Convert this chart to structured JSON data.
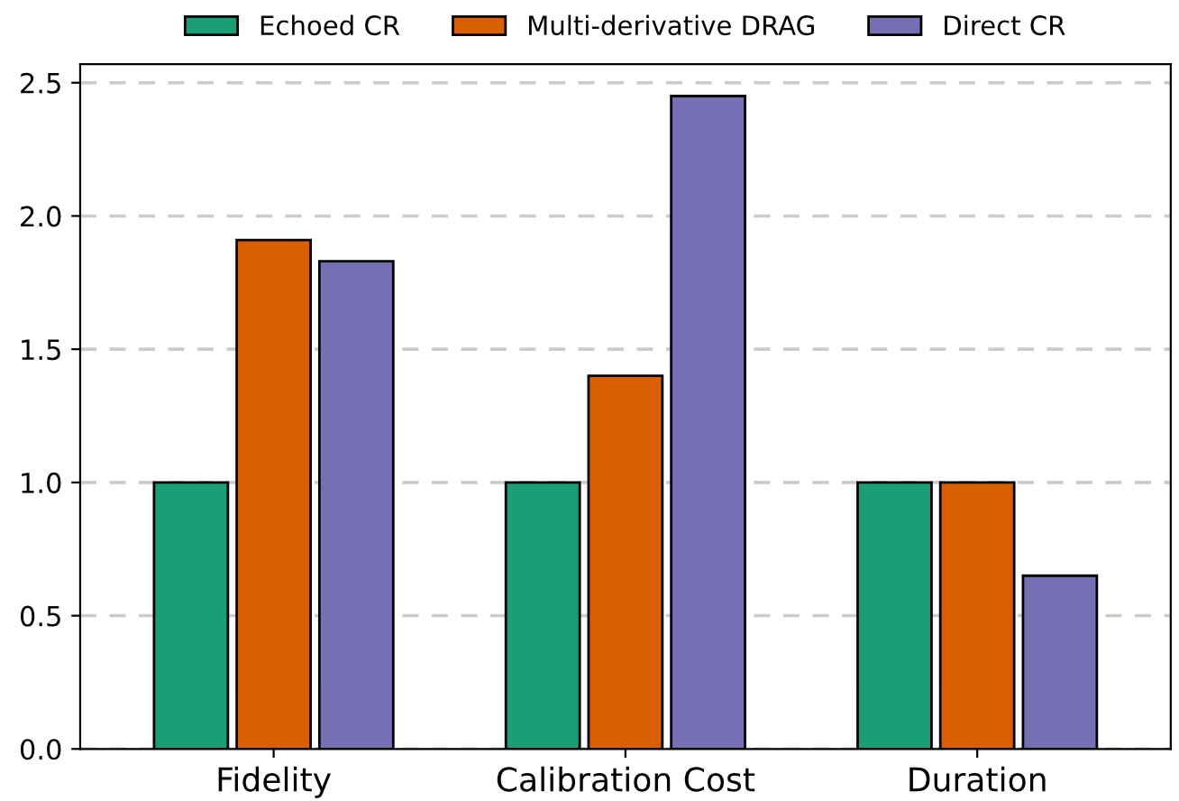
{
  "chart_data": {
    "type": "bar",
    "categories": [
      "Fidelity",
      "Calibration Cost",
      "Duration"
    ],
    "series": [
      {
        "name": "Echoed CR",
        "color": "#1b9e77",
        "values": [
          1.0,
          1.0,
          1.0
        ]
      },
      {
        "name": "Multi-derivative DRAG",
        "color": "#d95f02",
        "values": [
          1.91,
          1.4,
          1.0
        ]
      },
      {
        "name": "Direct CR",
        "color": "#7570b3",
        "values": [
          1.83,
          2.45,
          0.65
        ]
      }
    ],
    "ylim": [
      0,
      2.57
    ],
    "yticks": [
      {
        "value": 0,
        "label": "0.0"
      },
      0.5,
      {
        "value": 1,
        "label": "1.0"
      },
      1.5,
      {
        "value": 2,
        "label": "2.0"
      },
      2.5
    ],
    "grid": "y",
    "legend": "top"
  }
}
